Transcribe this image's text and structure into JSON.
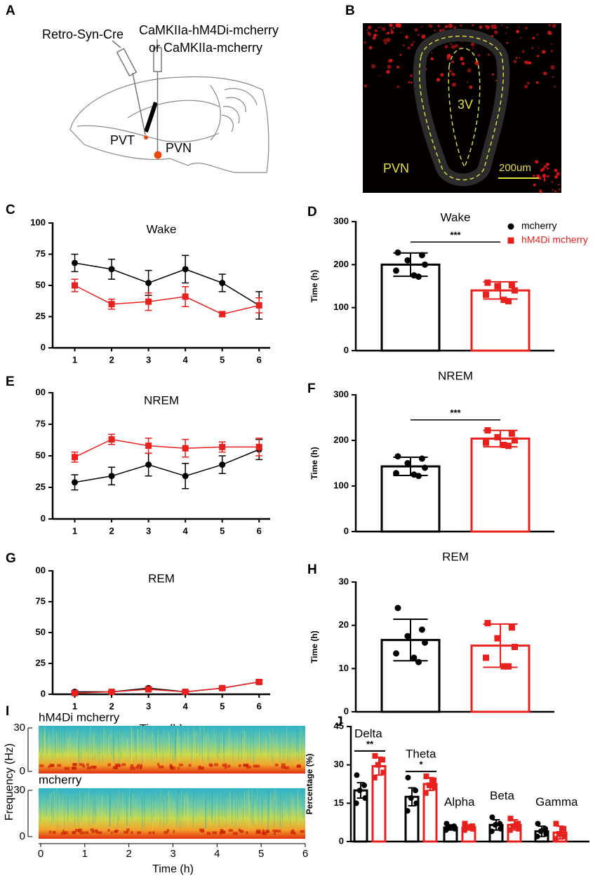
{
  "diagrams": {
    "A": {
      "panel": "A",
      "labels": [
        "Retro-Syn-Cre",
        "CaMKIIa-hM4Di-mcherry",
        "or CaMKIIa-mcherry",
        "PVT",
        "PVN"
      ]
    },
    "B": {
      "panel": "B",
      "labels": [
        "3V",
        "PVN",
        "200um"
      ]
    }
  },
  "chart_data": [
    {
      "type": "line",
      "panel": "C",
      "title": "Wake",
      "x": [
        1,
        2,
        3,
        4,
        5,
        6
      ],
      "xticks": [
        1,
        2,
        3,
        4,
        5,
        6
      ],
      "xlim": [
        0.4,
        6.3
      ],
      "ylim": [
        0,
        100
      ],
      "yticks": [
        0,
        25,
        50,
        75,
        100
      ],
      "series": [
        {
          "color": "#000000",
          "marker": "circle",
          "values": [
            68,
            63,
            52,
            63,
            52,
            34
          ],
          "errors": [
            7,
            8,
            10,
            11,
            7,
            11
          ]
        },
        {
          "color": "#e8201e",
          "marker": "square",
          "values": [
            50,
            35,
            37,
            41,
            27,
            34
          ],
          "errors": [
            5,
            4,
            7,
            8,
            2,
            6
          ]
        }
      ]
    },
    {
      "type": "bar",
      "panel": "D",
      "title": "Wake",
      "ylabel": "Time (h)",
      "ylim": [
        0,
        300
      ],
      "yticks": [
        0,
        100,
        200,
        300
      ],
      "significance": "***",
      "legend": "top-right",
      "series": [
        {
          "name": "mcherry",
          "color": "#000000",
          "marker": "circle",
          "values": [
            200
          ],
          "errors": [
            27
          ],
          "points": [
            [
              228,
              222,
              210,
              200,
              186,
              175,
              172
            ]
          ]
        },
        {
          "name": "hM4Di mcherry",
          "color": "#e8201e",
          "marker": "square",
          "values": [
            140
          ],
          "errors": [
            20
          ],
          "points": [
            [
              158,
              152,
              150,
              140,
              130,
              118,
              115
            ]
          ]
        }
      ]
    },
    {
      "type": "line",
      "panel": "E",
      "title": "NREM",
      "x": [
        1,
        2,
        3,
        4,
        5,
        6
      ],
      "xticks": [
        1,
        2,
        3,
        4,
        5,
        6
      ],
      "xlim": [
        0.4,
        6.3
      ],
      "ylim": [
        0,
        100
      ],
      "yticks": [
        0,
        25,
        50,
        75,
        {
          "value": 100,
          "label": "00"
        }
      ],
      "series": [
        {
          "color": "#000000",
          "marker": "circle",
          "values": [
            29,
            34,
            43,
            34,
            43,
            55
          ],
          "errors": [
            6,
            7,
            9,
            10,
            7,
            8
          ]
        },
        {
          "color": "#e8201e",
          "marker": "square",
          "values": [
            49,
            63,
            58,
            56,
            57,
            57
          ],
          "errors": [
            4,
            4,
            6,
            7,
            4,
            7
          ]
        }
      ]
    },
    {
      "type": "bar",
      "panel": "F",
      "title": "NREM",
      "ylabel": "Time (h)",
      "ylim": [
        0,
        300
      ],
      "yticks": [
        0,
        100,
        200,
        300
      ],
      "significance": "***",
      "series": [
        {
          "color": "#000000",
          "marker": "circle",
          "values": [
            143
          ],
          "errors": [
            20
          ],
          "points": [
            [
              165,
              160,
              150,
              140,
              128,
              125,
              122
            ]
          ]
        },
        {
          "color": "#e8201e",
          "marker": "square",
          "values": [
            204
          ],
          "errors": [
            18
          ],
          "points": [
            [
              222,
              215,
              207,
              200,
              195,
              190,
              188
            ]
          ]
        }
      ]
    },
    {
      "type": "line",
      "panel": "G",
      "title": "REM",
      "xlabel": "Time (h)",
      "x": [
        1,
        2,
        3,
        4,
        5,
        6
      ],
      "xticks": [
        1,
        2,
        3,
        4,
        5,
        6
      ],
      "xlim": [
        0.4,
        6.3
      ],
      "ylim": [
        0,
        100
      ],
      "yticks": [
        0,
        25,
        50,
        75,
        {
          "value": 100,
          "label": "00"
        }
      ],
      "series": [
        {
          "color": "#000000",
          "marker": "circle",
          "values": [
            2,
            2,
            5,
            2,
            5,
            10
          ],
          "errors": [
            1,
            1,
            1,
            1,
            1,
            1.5
          ]
        },
        {
          "color": "#e8201e",
          "marker": "square",
          "values": [
            1,
            2,
            4,
            2,
            5,
            10
          ],
          "errors": [
            1,
            1,
            1,
            1,
            1,
            1
          ]
        }
      ]
    },
    {
      "type": "bar",
      "panel": "H",
      "title": "REM",
      "ylabel": "Time (h)",
      "ylim": [
        0,
        30
      ],
      "yticks": [
        0,
        10,
        20,
        30
      ],
      "series": [
        {
          "color": "#000000",
          "marker": "circle",
          "values": [
            16.6
          ],
          "errors": [
            4.8
          ],
          "points": [
            [
              24,
              19,
              17.5,
              16,
              13.5,
              12.5,
              11.5
            ]
          ]
        },
        {
          "color": "#e8201e",
          "marker": "square",
          "values": [
            15.3
          ],
          "errors": [
            5
          ],
          "points": [
            [
              20.5,
              19.5,
              17,
              15,
              12.5,
              10.5,
              10.5
            ]
          ]
        }
      ]
    },
    {
      "type": "spectrogram",
      "panel": "I",
      "panels": [
        "hM4Di mcherry",
        "mcherry"
      ],
      "ylabel": "Frequency (Hz)",
      "ylim": [
        0,
        30
      ],
      "yticks": [
        0,
        30
      ],
      "xlabel": "Time (h)",
      "xlim": [
        0,
        6
      ],
      "xticks": [
        0,
        1,
        2,
        3,
        4,
        5,
        6
      ]
    },
    {
      "type": "bar",
      "panel": "J",
      "ylabel": "Percentage (%)",
      "ylim": [
        0,
        45
      ],
      "yticks": [
        0,
        15,
        30,
        45
      ],
      "categories": [
        "Delta",
        "Theta",
        "Alpha",
        "Beta",
        "Gamma"
      ],
      "significance": [
        "**",
        "*",
        null,
        null,
        null
      ],
      "series": [
        {
          "color": "#000000",
          "marker": "circle",
          "values": [
            20,
            17.5,
            5.5,
            6.5,
            4
          ],
          "errors": [
            3,
            3.5,
            1,
            2,
            2
          ],
          "points": [
            [
              26,
              22,
              20,
              17,
              15
            ],
            [
              25,
              20,
              17,
              15,
              12
            ],
            [
              7,
              6,
              5.5,
              5,
              4.5
            ],
            [
              9.5,
              7,
              6.5,
              5,
              4
            ],
            [
              7,
              5,
              4,
              3,
              2
            ]
          ]
        },
        {
          "color": "#e8201e",
          "marker": "square",
          "values": [
            29.5,
            22.5,
            5.5,
            6.5,
            3.5
          ],
          "errors": [
            3.5,
            2.5,
            1,
            2,
            2.5
          ],
          "points": [
            [
              33.5,
              32,
              30,
              27,
              25
            ],
            [
              25.5,
              24,
              22,
              21,
              19
            ],
            [
              7,
              6,
              5.5,
              5,
              4.5
            ],
            [
              9,
              7,
              6,
              5,
              4.5
            ],
            [
              7,
              5,
              3,
              2,
              1
            ]
          ]
        }
      ]
    }
  ]
}
